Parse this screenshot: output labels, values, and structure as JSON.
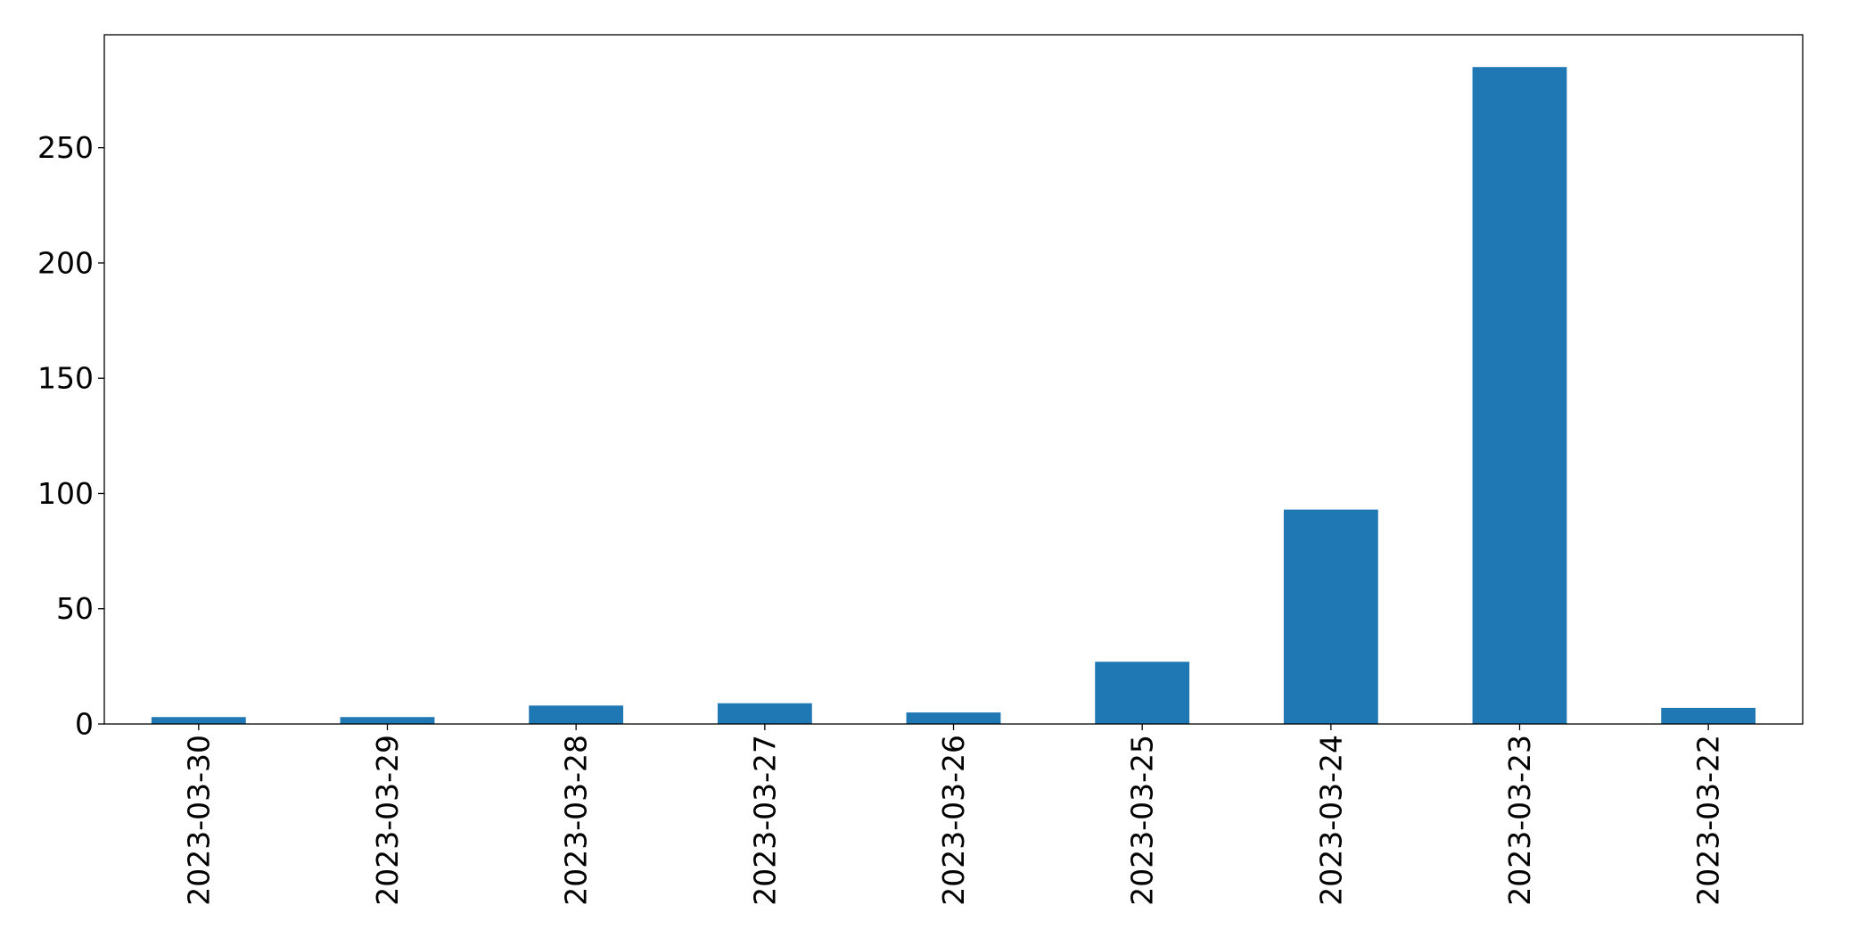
{
  "chart_data": {
    "type": "bar",
    "title": "",
    "xlabel": "",
    "ylabel": "",
    "categories": [
      "2023-03-30",
      "2023-03-29",
      "2023-03-28",
      "2023-03-27",
      "2023-03-26",
      "2023-03-25",
      "2023-03-24",
      "2023-03-23",
      "2023-03-22"
    ],
    "values": [
      3,
      3,
      8,
      9,
      5,
      27,
      93,
      285,
      7
    ],
    "ylim": [
      0,
      299
    ],
    "yticks": [
      0,
      50,
      100,
      150,
      200,
      250
    ],
    "ytick_labels": [
      "0",
      "50",
      "100",
      "150",
      "200",
      "250"
    ],
    "bar_color": "#1f77b4",
    "grid": false,
    "legend": "none",
    "xtick_rotation": "vertical"
  }
}
